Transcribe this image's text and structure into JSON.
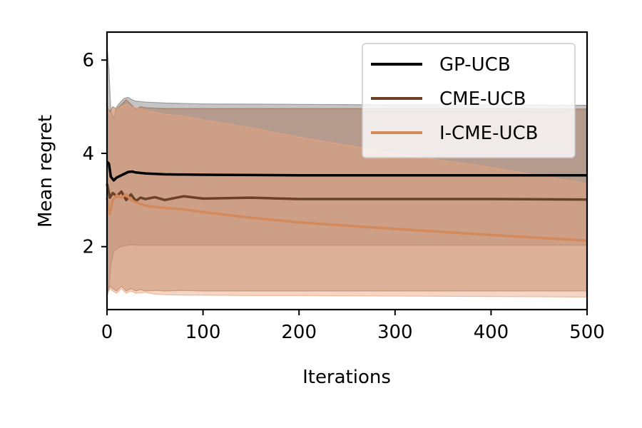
{
  "chart_data": {
    "type": "line",
    "title": "",
    "xlabel": "Iterations",
    "ylabel": "Mean regret",
    "xlim": [
      0,
      500
    ],
    "ylim": [
      0.65,
      6.6
    ],
    "xticks": [
      0,
      100,
      200,
      300,
      400,
      500
    ],
    "yticks": [
      2,
      4,
      6
    ],
    "grid": false,
    "legend_position": "top-right",
    "series": [
      {
        "name": "GP-UCB",
        "color": "#000000",
        "band_color": "#7f7f7f",
        "x": [
          0,
          2,
          4,
          7,
          10,
          14,
          18,
          22,
          26,
          30,
          40,
          60,
          100,
          200,
          300,
          400,
          500
        ],
        "y": [
          3.82,
          3.78,
          3.5,
          3.42,
          3.48,
          3.52,
          3.56,
          3.6,
          3.61,
          3.59,
          3.57,
          3.55,
          3.54,
          3.53,
          3.53,
          3.53,
          3.53
        ],
        "upper": [
          6.3,
          5.8,
          4.9,
          4.75,
          5.0,
          5.1,
          5.18,
          5.2,
          5.15,
          5.12,
          5.1,
          5.08,
          5.06,
          5.05,
          5.04,
          5.04,
          5.03
        ],
        "lower": [
          1.0,
          1.1,
          1.6,
          1.9,
          1.95,
          2.0,
          2.02,
          2.03,
          2.04,
          2.03,
          2.03,
          2.03,
          2.03,
          2.03,
          2.03,
          2.03,
          2.03
        ]
      },
      {
        "name": "CME-UCB",
        "color": "#6b4226",
        "band_color": "#a0694a",
        "x": [
          0,
          3,
          6,
          10,
          15,
          20,
          25,
          30,
          35,
          40,
          50,
          60,
          80,
          100,
          150,
          200,
          300,
          400,
          500
        ],
        "y": [
          3.35,
          3.05,
          3.15,
          3.08,
          3.18,
          3.0,
          3.12,
          2.98,
          3.05,
          3.02,
          3.06,
          3.0,
          3.08,
          3.03,
          3.05,
          3.02,
          3.02,
          3.02,
          3.01
        ],
        "upper": [
          5.0,
          4.9,
          5.0,
          4.95,
          5.05,
          5.15,
          5.05,
          4.95,
          5.0,
          4.98,
          4.97,
          4.96,
          4.96,
          4.96,
          4.96,
          4.96,
          4.96,
          4.96,
          4.95
        ],
        "lower": [
          1.0,
          1.15,
          1.1,
          1.05,
          1.15,
          1.05,
          1.1,
          1.05,
          1.08,
          1.05,
          1.06,
          1.05,
          1.06,
          1.05,
          1.05,
          1.05,
          1.05,
          1.05,
          1.05
        ]
      },
      {
        "name": "I-CME-UCB",
        "color": "#d4895a",
        "band_color": "#e8a57e",
        "x": [
          0,
          3,
          6,
          10,
          15,
          20,
          25,
          30,
          40,
          50,
          60,
          80,
          100,
          150,
          200,
          300,
          400,
          500
        ],
        "y": [
          3.05,
          2.7,
          3.0,
          3.1,
          3.05,
          3.12,
          3.0,
          2.95,
          2.88,
          2.85,
          2.83,
          2.8,
          2.74,
          2.62,
          2.52,
          2.38,
          2.25,
          2.13
        ],
        "upper": [
          5.0,
          4.85,
          4.9,
          4.95,
          5.0,
          5.05,
          5.0,
          4.98,
          4.92,
          4.88,
          4.84,
          4.8,
          4.72,
          4.55,
          4.35,
          4.0,
          3.7,
          3.35
        ],
        "lower": [
          0.95,
          1.1,
          1.05,
          1.0,
          1.1,
          1.0,
          1.05,
          1.0,
          1.02,
          0.98,
          0.97,
          0.96,
          0.96,
          0.95,
          0.95,
          0.94,
          0.93,
          0.92
        ]
      }
    ]
  }
}
